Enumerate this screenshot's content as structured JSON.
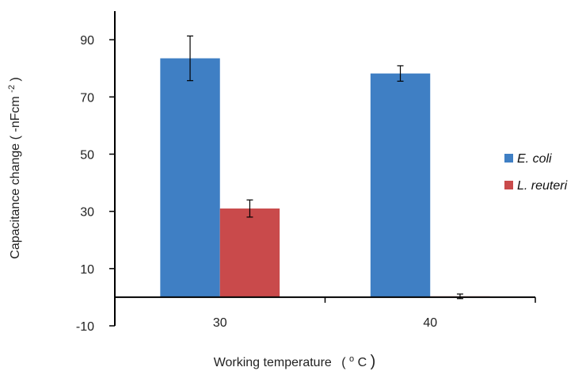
{
  "chart_data": {
    "type": "bar",
    "title": "",
    "categories": [
      "30",
      "40"
    ],
    "series": [
      {
        "name": "E. coli",
        "color": "#3f7fc4",
        "values": [
          83.5,
          78.2
        ],
        "errors": [
          7.8,
          2.7
        ]
      },
      {
        "name": "L. reuteri",
        "color": "#c94a4b",
        "values": [
          31.0,
          0.3
        ],
        "errors": [
          3.0,
          0.8
        ]
      }
    ],
    "xlabel": {
      "text": "Working temperature",
      "unit_open": "(",
      "unit_sup": "o",
      "unit_main": "C",
      "unit_close": ")"
    },
    "ylabel": {
      "text": "Capacitance change ( -nFcm",
      "unit_sup": "-2",
      "unit_close": ")"
    },
    "yticks": [
      "-10",
      "10",
      "30",
      "50",
      "70",
      "90"
    ],
    "ylim": [
      -10,
      100
    ],
    "grid": false,
    "legend_position": "right"
  }
}
